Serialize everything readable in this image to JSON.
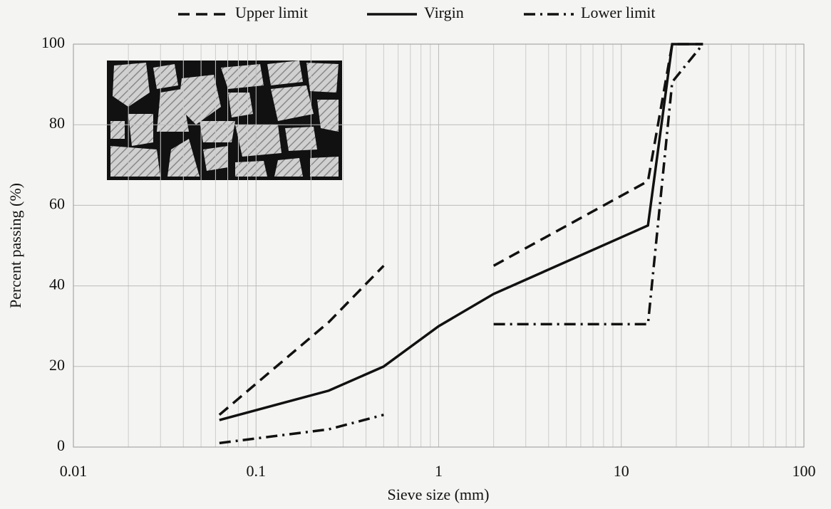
{
  "chart_data": {
    "type": "line",
    "xlabel": "Sieve size (mm)",
    "ylabel": "Percent passing (%)",
    "log_x": true,
    "grid": true,
    "minor_grid": true,
    "x": [
      0.063,
      0.25,
      0.5,
      1,
      2,
      14,
      19,
      28
    ],
    "series": [
      {
        "name": "Upper limit",
        "color": "#111111",
        "dash": "dashed",
        "values": [
          8,
          31,
          45,
          null,
          45,
          66,
          100,
          100
        ]
      },
      {
        "name": "Virgin",
        "color": "#111111",
        "dash": "solid",
        "values": [
          6.7,
          14,
          20,
          30,
          38,
          55,
          100,
          100
        ]
      },
      {
        "name": "Lower limit",
        "color": "#111111",
        "dash": "dashdot",
        "values": [
          1,
          4.4,
          8,
          null,
          30.5,
          30.5,
          90.6,
          100
        ]
      }
    ],
    "xlim": [
      0.01,
      100
    ],
    "xticks": [
      0.01,
      0.1,
      1,
      10,
      100
    ],
    "ylim": [
      0,
      100
    ],
    "yticks": [
      0,
      20,
      40,
      60,
      80,
      100
    ]
  }
}
